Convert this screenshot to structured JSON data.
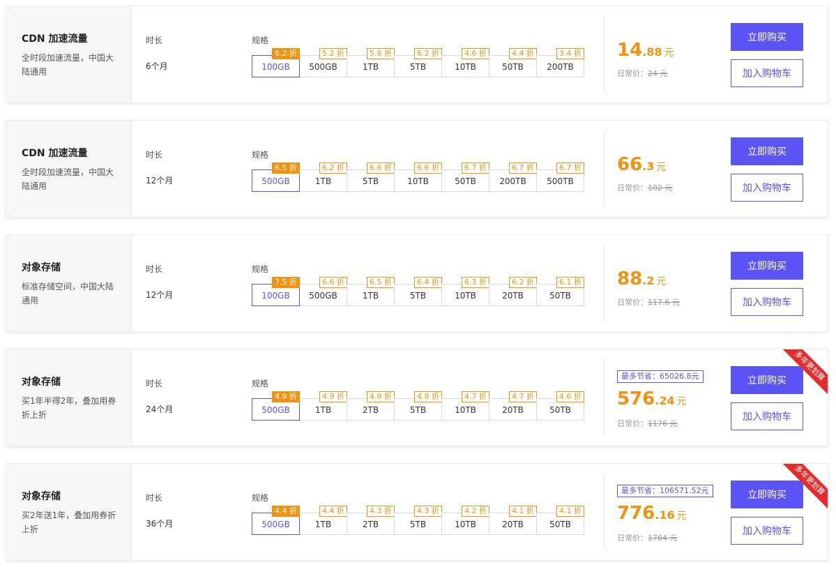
{
  "labels": {
    "duration": "时长",
    "spec": "规格",
    "buy_now": "立即购买",
    "add_to_cart": "加入购物车",
    "daily_price": "日常价：",
    "currency": "元"
  },
  "cards": [
    {
      "title": "CDN 加速流量",
      "desc": "全时段加速流量，中国大陆通用",
      "duration": "6个月",
      "options": [
        {
          "size": "100GB",
          "discount": "6.2 折"
        },
        {
          "size": "500GB",
          "discount": "5.2 折"
        },
        {
          "size": "1TB",
          "discount": "5.8 折"
        },
        {
          "size": "5TB",
          "discount": "6.2 折"
        },
        {
          "size": "10TB",
          "discount": "4.6 折"
        },
        {
          "size": "50TB",
          "discount": "4.4 折"
        },
        {
          "size": "200TB",
          "discount": "3.4 折"
        }
      ],
      "selected": 0,
      "price_int": "14",
      "price_dec": ".88",
      "original": "24 元"
    },
    {
      "title": "CDN 加速流量",
      "desc": "全时段加速流量，中国大陆通用",
      "duration": "12个月",
      "options": [
        {
          "size": "500GB",
          "discount": "6.5 折"
        },
        {
          "size": "1TB",
          "discount": "6.2 折"
        },
        {
          "size": "5TB",
          "discount": "6.6 折"
        },
        {
          "size": "10TB",
          "discount": "6.6 折"
        },
        {
          "size": "50TB",
          "discount": "6.7 折"
        },
        {
          "size": "200TB",
          "discount": "6.7 折"
        },
        {
          "size": "500TB",
          "discount": "6.7 折"
        }
      ],
      "selected": 0,
      "price_int": "66",
      "price_dec": ".3",
      "original": "102 元"
    },
    {
      "title": "对象存储",
      "desc": "标准存储空间，中国大陆通用",
      "duration": "12个月",
      "options": [
        {
          "size": "100GB",
          "discount": "7.5 折"
        },
        {
          "size": "500GB",
          "discount": "6.6 折"
        },
        {
          "size": "1TB",
          "discount": "6.5 折"
        },
        {
          "size": "5TB",
          "discount": "6.4 折"
        },
        {
          "size": "10TB",
          "discount": "6.3 折"
        },
        {
          "size": "20TB",
          "discount": "6.2 折"
        },
        {
          "size": "50TB",
          "discount": "6.1 折"
        }
      ],
      "selected": 0,
      "price_int": "88",
      "price_dec": ".2",
      "original": "117.6 元"
    },
    {
      "title": "对象存储",
      "desc": "买1年半得2年，叠加用券折上折",
      "duration": "24个月",
      "options": [
        {
          "size": "500GB",
          "discount": "4.9 折"
        },
        {
          "size": "1TB",
          "discount": "4.9 折"
        },
        {
          "size": "2TB",
          "discount": "4.9 折"
        },
        {
          "size": "5TB",
          "discount": "4.8 折"
        },
        {
          "size": "10TB",
          "discount": "4.7 折"
        },
        {
          "size": "20TB",
          "discount": "4.7 折"
        },
        {
          "size": "50TB",
          "discount": "4.6 折"
        }
      ],
      "selected": 0,
      "save": "最多节省：65026.8元",
      "ribbon": "多年更划算",
      "price_int": "576",
      "price_dec": ".24",
      "original": "1176 元"
    },
    {
      "title": "对象存储",
      "desc": "买2年送1年，叠加用券折上折",
      "duration": "36个月",
      "options": [
        {
          "size": "500GB",
          "discount": "4.4 折"
        },
        {
          "size": "1TB",
          "discount": "4.4 折"
        },
        {
          "size": "2TB",
          "discount": "4.3 折"
        },
        {
          "size": "5TB",
          "discount": "4.3 折"
        },
        {
          "size": "10TB",
          "discount": "4.2 折"
        },
        {
          "size": "20TB",
          "discount": "4.1 折"
        },
        {
          "size": "50TB",
          "discount": "4.1 折"
        }
      ],
      "selected": 0,
      "save": "最多节省：106571.52元",
      "ribbon": "多年更划算",
      "price_int": "776",
      "price_dec": ".16",
      "original": "1764 元"
    }
  ]
}
